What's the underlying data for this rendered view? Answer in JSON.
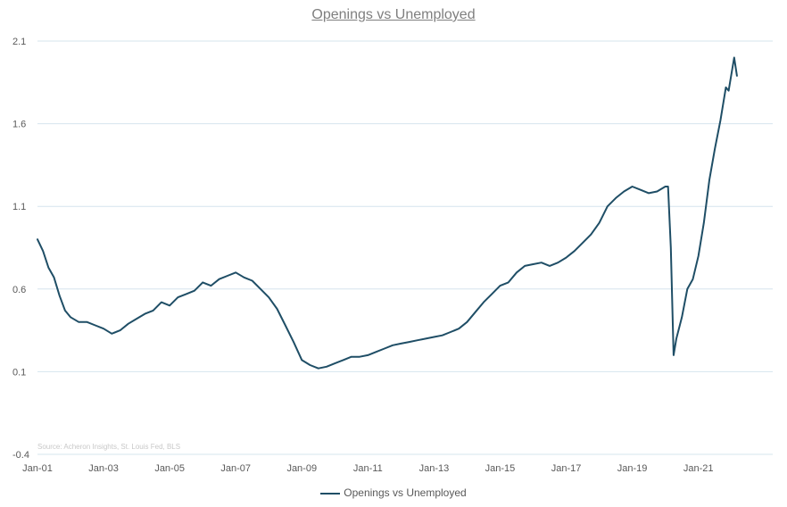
{
  "chart_data": {
    "type": "line",
    "title": "Openings vs Unemployed",
    "xlabel": "",
    "ylabel": "",
    "ylim": [
      -0.4,
      2.1
    ],
    "yticks": [
      "2.1",
      "1.6",
      "1.1",
      "0.6",
      "0.1",
      "-0.4"
    ],
    "xticks": [
      "Jan-01",
      "Jan-03",
      "Jan-05",
      "Jan-07",
      "Jan-09",
      "Jan-11",
      "Jan-13",
      "Jan-15",
      "Jan-17",
      "Jan-19",
      "Jan-21"
    ],
    "grid": true,
    "legend_position": "bottom",
    "source_note": "Source: Acheron Insights, St. Louis Fed, BLS",
    "series": [
      {
        "name": "Openings vs Unemployed",
        "color": "#1f4e66",
        "x": [
          "2001-01",
          "2001-03",
          "2001-05",
          "2001-07",
          "2001-09",
          "2001-11",
          "2002-01",
          "2002-04",
          "2002-07",
          "2002-10",
          "2003-01",
          "2003-04",
          "2003-07",
          "2003-10",
          "2004-01",
          "2004-04",
          "2004-07",
          "2004-10",
          "2005-01",
          "2005-04",
          "2005-07",
          "2005-10",
          "2006-01",
          "2006-04",
          "2006-07",
          "2006-10",
          "2007-01",
          "2007-04",
          "2007-07",
          "2007-10",
          "2008-01",
          "2008-04",
          "2008-07",
          "2008-10",
          "2009-01",
          "2009-04",
          "2009-07",
          "2009-10",
          "2010-01",
          "2010-04",
          "2010-07",
          "2010-10",
          "2011-01",
          "2011-04",
          "2011-07",
          "2011-10",
          "2012-01",
          "2012-04",
          "2012-07",
          "2012-10",
          "2013-01",
          "2013-04",
          "2013-07",
          "2013-10",
          "2014-01",
          "2014-04",
          "2014-07",
          "2014-10",
          "2015-01",
          "2015-04",
          "2015-07",
          "2015-10",
          "2016-01",
          "2016-04",
          "2016-07",
          "2016-10",
          "2017-01",
          "2017-04",
          "2017-07",
          "2017-10",
          "2018-01",
          "2018-04",
          "2018-07",
          "2018-10",
          "2019-01",
          "2019-04",
          "2019-07",
          "2019-10",
          "2020-01",
          "2020-02",
          "2020-03",
          "2020-04",
          "2020-05",
          "2020-07",
          "2020-09",
          "2020-11",
          "2021-01",
          "2021-03",
          "2021-05",
          "2021-07",
          "2021-09",
          "2021-11",
          "2021-12",
          "2022-01",
          "2022-02",
          "2022-03"
        ],
        "values": [
          0.9,
          0.83,
          0.73,
          0.67,
          0.56,
          0.47,
          0.43,
          0.4,
          0.4,
          0.38,
          0.36,
          0.33,
          0.35,
          0.39,
          0.42,
          0.45,
          0.47,
          0.52,
          0.5,
          0.55,
          0.57,
          0.59,
          0.64,
          0.62,
          0.66,
          0.68,
          0.7,
          0.67,
          0.65,
          0.6,
          0.55,
          0.48,
          0.38,
          0.28,
          0.17,
          0.14,
          0.12,
          0.13,
          0.15,
          0.17,
          0.19,
          0.19,
          0.2,
          0.22,
          0.24,
          0.26,
          0.27,
          0.28,
          0.29,
          0.3,
          0.31,
          0.32,
          0.34,
          0.36,
          0.4,
          0.46,
          0.52,
          0.57,
          0.62,
          0.64,
          0.7,
          0.74,
          0.75,
          0.76,
          0.74,
          0.76,
          0.79,
          0.83,
          0.88,
          0.93,
          1.0,
          1.1,
          1.15,
          1.19,
          1.22,
          1.2,
          1.18,
          1.19,
          1.22,
          1.22,
          0.85,
          0.2,
          0.3,
          0.43,
          0.6,
          0.66,
          0.8,
          1.0,
          1.26,
          1.45,
          1.62,
          1.82,
          1.8,
          1.9,
          2.0,
          1.89
        ]
      }
    ]
  }
}
